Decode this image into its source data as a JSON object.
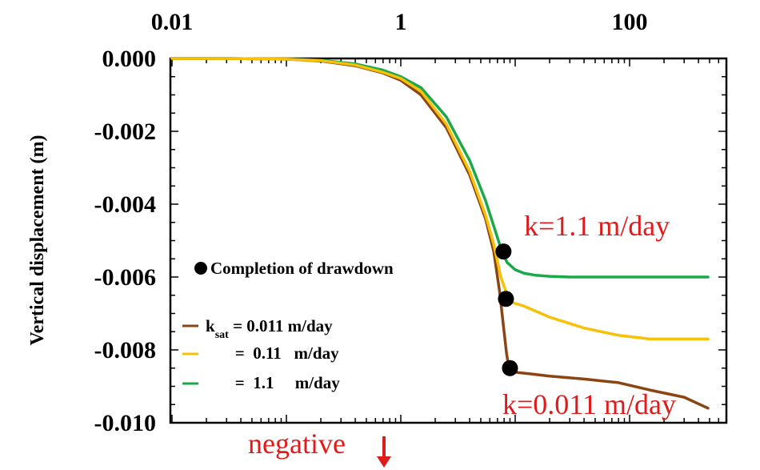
{
  "chart_data": {
    "type": "line",
    "x_scale": "log",
    "x_ticks": [
      0.01,
      1,
      100
    ],
    "x_tick_labels": [
      "0.01",
      "1",
      "100"
    ],
    "xlim": [
      0.01,
      500
    ],
    "ylabel": "Vertical displacement (m)",
    "ylim": [
      -0.01,
      0.0
    ],
    "y_ticks": [
      0.0,
      -0.002,
      -0.004,
      -0.006,
      -0.008,
      -0.01
    ],
    "y_tick_labels": [
      "0.000",
      "-0.002",
      "-0.004",
      "-0.006",
      "-0.008",
      "-0.010"
    ],
    "grid": false,
    "legend_position": "bottom-left",
    "series": [
      {
        "name": "k_sat = 0.011 m/day",
        "legend_label_main": "k",
        "legend_label_sub": "sat",
        "legend_label_rest": " = 0.011 m/day",
        "color": "#8B4513",
        "x": [
          0.01,
          0.03,
          0.1,
          0.2,
          0.4,
          0.7,
          1.0,
          1.5,
          2.5,
          4.0,
          5.5,
          6.5,
          7.3,
          8.0,
          8.4,
          8.7,
          9.0,
          9.5,
          10.5,
          13,
          20,
          40,
          80,
          150,
          300,
          500
        ],
        "y": [
          0.0,
          0.0,
          -2e-05,
          -7e-05,
          -0.0002,
          -0.0004,
          -0.0006,
          -0.001,
          -0.0019,
          -0.0032,
          -0.0044,
          -0.0053,
          -0.0064,
          -0.0075,
          -0.0081,
          -0.0084,
          -0.00852,
          -0.00858,
          -0.00862,
          -0.00865,
          -0.00872,
          -0.0088,
          -0.0089,
          -0.0091,
          -0.0093,
          -0.0096
        ]
      },
      {
        "name": "= 0.11 m/day",
        "legend_label_rest": "       =  0.11   m/day",
        "color": "#F7C10A",
        "x": [
          0.01,
          0.03,
          0.1,
          0.2,
          0.4,
          0.7,
          1.0,
          1.5,
          2.5,
          4.0,
          5.5,
          6.5,
          7.5,
          8.3,
          8.8,
          9.5,
          12,
          20,
          40,
          80,
          150,
          300,
          500
        ],
        "y": [
          0.0,
          0.0,
          -2e-05,
          -6e-05,
          -0.00018,
          -0.00038,
          -0.00055,
          -0.0009,
          -0.0018,
          -0.0031,
          -0.0043,
          -0.0051,
          -0.006,
          -0.0064,
          -0.0066,
          -0.0067,
          -0.0068,
          -0.0071,
          -0.0074,
          -0.0076,
          -0.0077,
          -0.0077,
          -0.0077
        ]
      },
      {
        "name": "= 1.1 m/day",
        "legend_label_rest": "       =  1.1     m/day",
        "color": "#1AA84A",
        "x": [
          0.01,
          0.03,
          0.1,
          0.2,
          0.4,
          0.7,
          1.0,
          1.5,
          2.5,
          4.0,
          5.5,
          6.5,
          7.3,
          7.9,
          8.5,
          10,
          12,
          15,
          20,
          30,
          40,
          60,
          100,
          200,
          500
        ],
        "y": [
          0.0,
          0.0,
          -2e-05,
          -5e-05,
          -0.00015,
          -0.00032,
          -0.0005,
          -0.0008,
          -0.0016,
          -0.0028,
          -0.0039,
          -0.0046,
          -0.0051,
          -0.0054,
          -0.0056,
          -0.0058,
          -0.0059,
          -0.00595,
          -0.00598,
          -0.006,
          -0.006,
          -0.006,
          -0.006,
          -0.006,
          -0.006
        ]
      }
    ],
    "markers": [
      {
        "label": "Completion of drawdown",
        "x": 7.9,
        "y": -0.0053
      },
      {
        "x": 8.3,
        "y": -0.0066
      },
      {
        "x": 9.0,
        "y": -0.0085
      }
    ],
    "legend_marker_label": "Completion of drawdown",
    "annotations": [
      {
        "text": "k=1.1 m/day",
        "color": "#e01b1b"
      },
      {
        "text": "k=0.011 m/day",
        "color": "#e01b1b"
      },
      {
        "text": "negative",
        "color": "#e01b1b"
      }
    ]
  }
}
